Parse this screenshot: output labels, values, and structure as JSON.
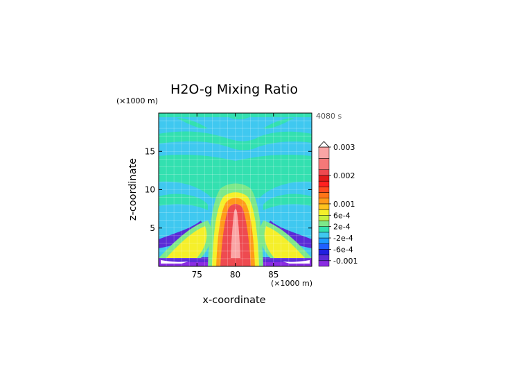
{
  "chart_data": {
    "type": "heatmap",
    "title": "H2O-g Mixing Ratio",
    "time_label": "4080 s",
    "xlabel": "x-coordinate",
    "ylabel": "z-coordinate",
    "x_unit": "(×1000 m)",
    "y_unit": "(×1000 m)",
    "xlim": [
      70,
      90
    ],
    "ylim": [
      0,
      20
    ],
    "x_ticks": [
      75,
      80,
      85
    ],
    "y_ticks": [
      5,
      10,
      15
    ],
    "colorbar": {
      "labels": [
        "0.003",
        "0.002",
        "0.001",
        "6e-4",
        "2e-4",
        "-2e-4",
        "-6e-4",
        "-0.001"
      ],
      "label_values": [
        0.003,
        0.002,
        0.001,
        0.0006,
        0.0002,
        -0.0002,
        -0.0006,
        -0.001
      ],
      "colors": [
        "#8a2be2",
        "#5a2bd6",
        "#2020e0",
        "#2060ff",
        "#1e9bff",
        "#3fc8f0",
        "#33e0b0",
        "#7de88a",
        "#c8f040",
        "#f5ef2a",
        "#ffc21e",
        "#ff9a1a",
        "#ff7418",
        "#ff4a20",
        "#ff2020",
        "#e21b1b",
        "#ee4a50",
        "#f57878",
        "#faa5a5"
      ],
      "bounds": [
        -0.0012,
        -0.001,
        -0.0008,
        -0.0006,
        -0.0004,
        -0.0002,
        0,
        0.0002,
        0.0004,
        0.0006,
        0.0008,
        0.001,
        0.0012,
        0.0014,
        0.0016,
        0.0018,
        0.002,
        0.0022,
        0.0026,
        0.003
      ]
    },
    "field_regions": {
      "background": -0.0001,
      "light_bands": 0.0001,
      "plume_core": 0.0022,
      "plume_edge": 0.0014,
      "base_anomaly": -0.0009
    }
  }
}
